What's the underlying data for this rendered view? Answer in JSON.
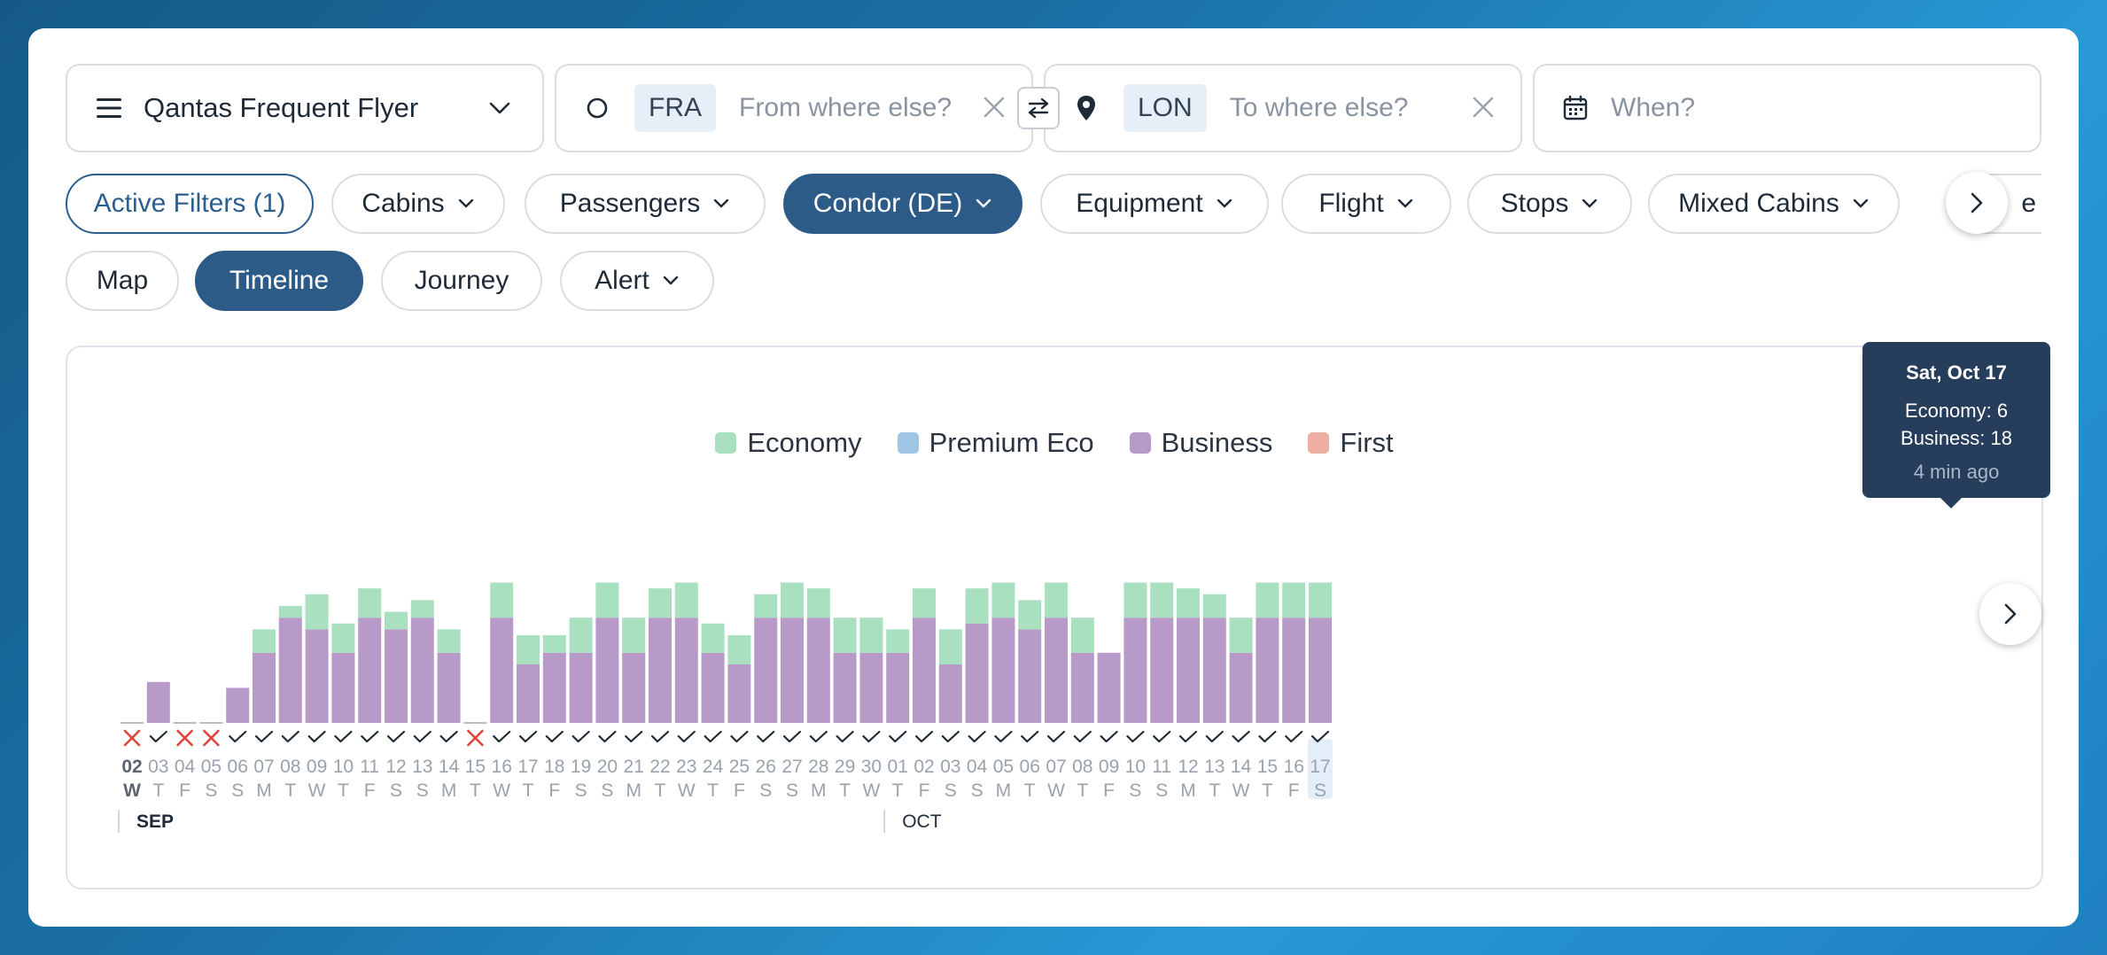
{
  "search": {
    "program": "Qantas Frequent Flyer",
    "from_code": "FRA",
    "from_placeholder": "From where else?",
    "to_code": "LON",
    "to_placeholder": "To where else?",
    "when_placeholder": "When?"
  },
  "filters": {
    "active": "Active Filters (1)",
    "cabins": "Cabins",
    "passengers": "Passengers",
    "airline": "Condor (DE)",
    "equipment": "Equipment",
    "flight": "Flight",
    "stops": "Stops",
    "mixed": "Mixed Cabins",
    "more_partial": "e"
  },
  "views": {
    "map": "Map",
    "timeline": "Timeline",
    "journey": "Journey",
    "alert": "Alert"
  },
  "colors": {
    "economy": "#a8e0c0",
    "premium": "#9fc6e4",
    "business": "#b89ac9",
    "first": "#eeaea3",
    "available": "#1f2a37",
    "unavailable": "#e0443a"
  },
  "tooltip": {
    "date": "Sat, Oct 17",
    "economy": "Economy: 6",
    "business": "Business: 18",
    "age": "4 min ago"
  },
  "chart_data": {
    "type": "bar",
    "stacked": true,
    "legend": [
      "Economy",
      "Premium Eco",
      "Business",
      "First"
    ],
    "months": [
      {
        "label": "SEP",
        "start_index": 0
      },
      {
        "label": "OCT",
        "start_index": 29
      }
    ],
    "days": [
      "02",
      "03",
      "04",
      "05",
      "06",
      "07",
      "08",
      "09",
      "10",
      "11",
      "12",
      "13",
      "14",
      "15",
      "16",
      "17",
      "18",
      "19",
      "20",
      "21",
      "22",
      "23",
      "24",
      "25",
      "26",
      "27",
      "28",
      "29",
      "30",
      "01",
      "02",
      "03",
      "04",
      "05",
      "06",
      "07",
      "08",
      "09",
      "10",
      "11",
      "12",
      "13",
      "14",
      "15",
      "16",
      "17"
    ],
    "weekdays": [
      "W",
      "T",
      "F",
      "S",
      "S",
      "M",
      "T",
      "W",
      "T",
      "F",
      "S",
      "S",
      "M",
      "T",
      "W",
      "T",
      "F",
      "S",
      "S",
      "M",
      "T",
      "W",
      "T",
      "F",
      "S",
      "S",
      "M",
      "T",
      "W",
      "T",
      "F",
      "S",
      "S",
      "M",
      "T",
      "W",
      "T",
      "F",
      "S",
      "S",
      "M",
      "T",
      "W",
      "T",
      "F",
      "S"
    ],
    "available": [
      false,
      true,
      false,
      false,
      true,
      true,
      true,
      true,
      true,
      true,
      true,
      true,
      true,
      false,
      true,
      true,
      true,
      true,
      true,
      true,
      true,
      true,
      true,
      true,
      true,
      true,
      true,
      true,
      true,
      true,
      true,
      true,
      true,
      true,
      true,
      true,
      true,
      true,
      true,
      true,
      true,
      true,
      true,
      true,
      true,
      true
    ],
    "series": [
      {
        "name": "Business",
        "values": [
          0,
          7,
          0,
          0,
          6,
          12,
          18,
          16,
          12,
          18,
          16,
          18,
          12,
          0,
          18,
          10,
          12,
          12,
          18,
          12,
          18,
          18,
          12,
          10,
          18,
          18,
          18,
          12,
          12,
          12,
          18,
          10,
          17,
          18,
          16,
          18,
          12,
          12,
          18,
          18,
          18,
          18,
          12,
          18,
          18,
          18
        ]
      },
      {
        "name": "Economy",
        "values": [
          0,
          0,
          0,
          0,
          0,
          4,
          2,
          6,
          5,
          5,
          3,
          3,
          4,
          0,
          6,
          5,
          3,
          6,
          6,
          6,
          5,
          6,
          5,
          5,
          4,
          6,
          5,
          6,
          6,
          4,
          5,
          6,
          6,
          6,
          5,
          6,
          6,
          0,
          6,
          6,
          5,
          4,
          6,
          6,
          6,
          6
        ]
      }
    ],
    "highlight_index": 45
  }
}
